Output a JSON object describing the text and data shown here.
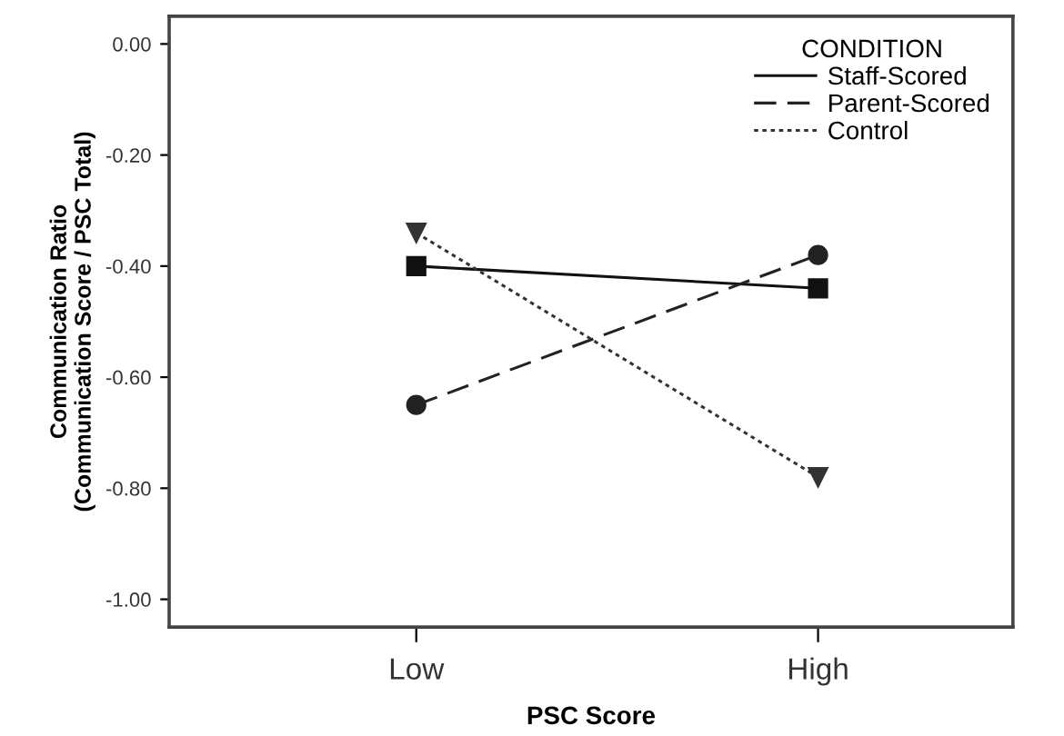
{
  "chart_data": {
    "type": "line",
    "xlabel": "PSC Score",
    "ylabel": "Communication Ratio\n(Communication Score / PSC Total)",
    "legend_title": "CONDITION",
    "legend": "top right",
    "grid": false,
    "categories": [
      "Low",
      "High"
    ],
    "ylim": [
      -1.05,
      0.05
    ],
    "yticks": [
      {
        "value": 0,
        "label": "0.00"
      },
      {
        "value": -0.2,
        "label": "-0.20"
      },
      {
        "value": -0.4,
        "label": "-0.40"
      },
      {
        "value": -0.6,
        "label": "-0.60"
      },
      {
        "value": -0.8,
        "label": "-0.80"
      },
      {
        "value": -1.0,
        "label": "-1.00"
      }
    ],
    "series": [
      {
        "name": "Staff-Scored",
        "color": "#111111",
        "values": [
          -0.4,
          -0.44
        ],
        "marker": "square",
        "line_style": "solid"
      },
      {
        "name": "Parent-Scored",
        "color": "#222222",
        "values": [
          -0.65,
          -0.38
        ],
        "marker": "circle",
        "line_style": "dashed"
      },
      {
        "name": "Control",
        "color": "#333333",
        "values": [
          -0.34,
          -0.78
        ],
        "marker": "triangle",
        "line_style": "dotted"
      }
    ]
  }
}
